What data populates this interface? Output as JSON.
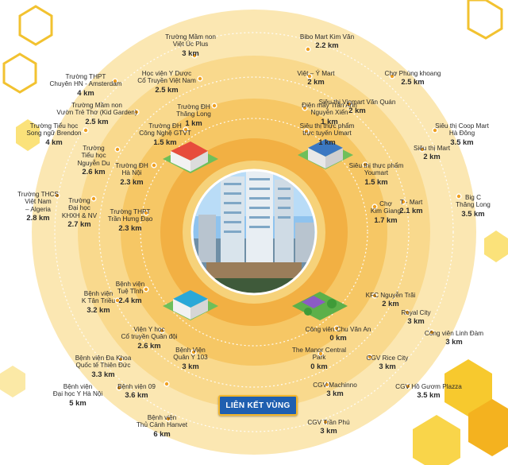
{
  "banner": "LIÊN KẾT VÙNG",
  "colors": {
    "ring_outer": "#fbe7b2",
    "ring_2": "#f9d98d",
    "ring_3": "#f6c765",
    "ring_4": "#f2b043",
    "ring_inner": "#f6d27a",
    "accent": "#f4b62a",
    "banner_bg": "#1f5fb0",
    "dot": "#f0a020"
  },
  "locations": [
    {
      "name": [
        "Trường Mầm non",
        "Việt Úc Plus"
      ],
      "distance": "3 km"
    },
    {
      "name": [
        "Bibo Mart Kim Văn"
      ],
      "distance": "2.2 km"
    },
    {
      "name": [
        "Trường THPT",
        "Chuyên HN - Amsterdam"
      ],
      "distance": "4 km"
    },
    {
      "name": [
        "Học viện Y Dược",
        "Cổ Truyền Việt Nam"
      ],
      "distance": "2.5 km"
    },
    {
      "name": [
        "Việt – Ý Mart"
      ],
      "distance": "2 km"
    },
    {
      "name": [
        "Chợ Phùng khoang"
      ],
      "distance": "2.5 km"
    },
    {
      "name": [
        "Trường Mầm non",
        "Vườn Trẻ Thơ (Kid Garden)"
      ],
      "distance": "2.5 km"
    },
    {
      "name": [
        "Trường ĐH",
        "Thăng Long"
      ],
      "distance": "1 km"
    },
    {
      "name": [
        "Điện máy Trần Anh",
        "Nguyễn Xiển"
      ],
      "distance": "1 km"
    },
    {
      "name": [
        "Siêu thị Vinmart Văn Quán"
      ],
      "distance": "2 km"
    },
    {
      "name": [
        "Trường Tiểu học",
        "Song ngữ Brendon"
      ],
      "distance": "4 km"
    },
    {
      "name": [
        "Trường ĐH",
        "Công Nghệ GTVT"
      ],
      "distance": "1.5 km"
    },
    {
      "name": [
        "Siêu thị thực phẩm",
        "trực tuyến Umart"
      ],
      "distance": "1 km"
    },
    {
      "name": [
        "Siêu thị Coop Mart",
        "Hà Đông"
      ],
      "distance": "3.5 km"
    },
    {
      "name": [
        "Trường",
        "Tiểu học",
        "Nguyễn Du"
      ],
      "distance": "2.6 km"
    },
    {
      "name": [
        "Siêu thị Mart"
      ],
      "distance": "2 km"
    },
    {
      "name": [
        "Trường ĐH",
        "Hà Nội"
      ],
      "distance": "2.3 km"
    },
    {
      "name": [
        "Siêu thị thực phẩm",
        "Youmart"
      ],
      "distance": "1.5 km"
    },
    {
      "name": [
        "Trường THCS",
        "Việt Nam",
        "– Algeria"
      ],
      "distance": "2.8 km"
    },
    {
      "name": [
        "Trường",
        "Đại học",
        "KHXH & NV"
      ],
      "distance": "2.7 km"
    },
    {
      "name": [
        "Trường THPT",
        "Trần Hưng Đạo"
      ],
      "distance": "2.3 km"
    },
    {
      "name": [
        "Chợ",
        "Kim Giang"
      ],
      "distance": "1.7 km"
    },
    {
      "name": [
        "T - Mart"
      ],
      "distance": "2.1 km"
    },
    {
      "name": [
        "Big C",
        "Thăng Long"
      ],
      "distance": "3.5 km"
    },
    {
      "name": [
        "Bệnh viện",
        "Tuệ Tĩnh"
      ],
      "distance": "2.4 km"
    },
    {
      "name": [
        "KFC Nguyễn Trãi"
      ],
      "distance": "2 km"
    },
    {
      "name": [
        "Bệnh viện",
        "K Tân Triều"
      ],
      "distance": "3.2 km"
    },
    {
      "name": [
        "Royal City"
      ],
      "distance": "3 km"
    },
    {
      "name": [
        "Viện Y học",
        "Cổ truyền Quân đội"
      ],
      "distance": "2.6 km"
    },
    {
      "name": [
        "Công viên Chu Văn An"
      ],
      "distance": "0 km"
    },
    {
      "name": [
        "Công viên Linh Đàm"
      ],
      "distance": "3 km"
    },
    {
      "name": [
        "Bệnh viện Đa Khoa",
        "Quốc tế Thiên Đức"
      ],
      "distance": "3.3 km"
    },
    {
      "name": [
        "Bệnh Viện",
        "Quân Y 103"
      ],
      "distance": "3 km"
    },
    {
      "name": [
        "The Manor Central",
        "Park"
      ],
      "distance": "0 km"
    },
    {
      "name": [
        "CGV Rice City"
      ],
      "distance": "3 km"
    },
    {
      "name": [
        "Bệnh viện 09"
      ],
      "distance": "3.6 km"
    },
    {
      "name": [
        "CGV Machinno"
      ],
      "distance": "3 km"
    },
    {
      "name": [
        "Bệnh viện",
        "Đại học Y Hà Nội"
      ],
      "distance": "5 km"
    },
    {
      "name": [
        "CGV Hồ Gươm Plazza"
      ],
      "distance": "3.5 km"
    },
    {
      "name": [
        "Bệnh viện",
        "Thủ Cảnh Hanvet"
      ],
      "distance": "6 km"
    },
    {
      "name": [
        "CGV Trần Phú"
      ],
      "distance": "3 km"
    }
  ]
}
